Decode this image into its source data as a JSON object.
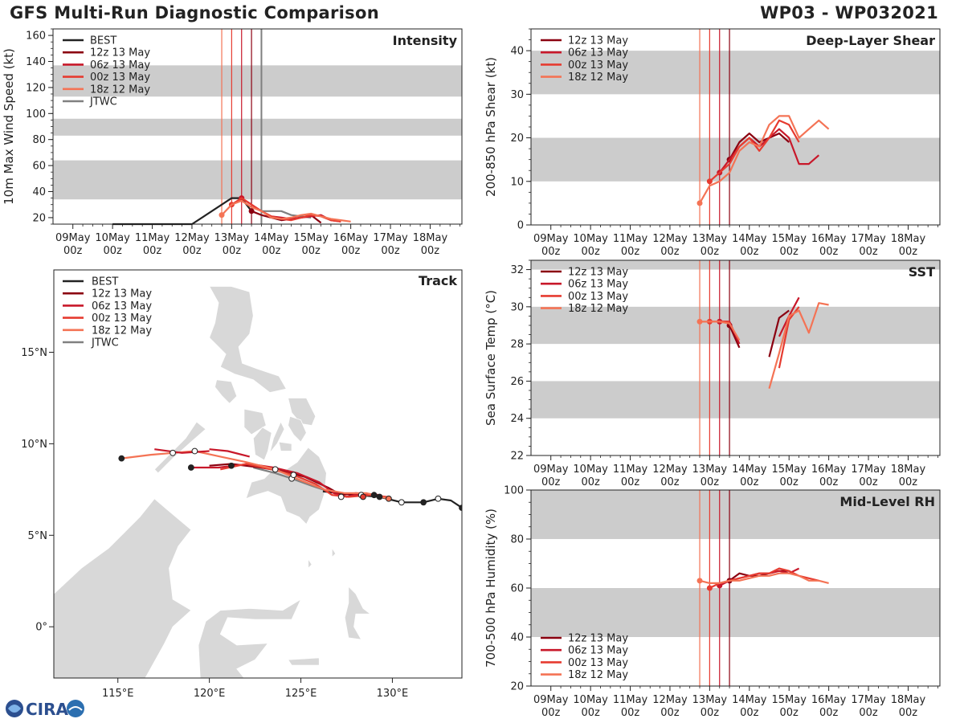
{
  "header": {
    "title": "GFS Multi-Run Diagnostic Comparison",
    "storm_id": "WP03 - WP032021"
  },
  "logo": {
    "text": "CIRA",
    "icon": "cira-logo-icon"
  },
  "colors": {
    "BEST": "#222222",
    "12z 13 May": "#8b0010",
    "06z 13 May": "#c8182a",
    "00z 13 May": "#e63b30",
    "18z 12 May": "#f47355",
    "JTWC": "#808080",
    "band": "#cccccc",
    "land": "#d8d8d8"
  },
  "time_axis": {
    "ticks": [
      {
        "d": 0,
        "line1": "09May",
        "line2": "00z"
      },
      {
        "d": 1,
        "line1": "10May",
        "line2": "00z"
      },
      {
        "d": 2,
        "line1": "11May",
        "line2": "00z"
      },
      {
        "d": 3,
        "line1": "12May",
        "line2": "00z"
      },
      {
        "d": 4,
        "line1": "13May",
        "line2": "00z"
      },
      {
        "d": 5,
        "line1": "14May",
        "line2": "00z"
      },
      {
        "d": 6,
        "line1": "15May",
        "line2": "00z"
      },
      {
        "d": 7,
        "line1": "16May",
        "line2": "00z"
      },
      {
        "d": 8,
        "line1": "17May",
        "line2": "00z"
      },
      {
        "d": 9,
        "line1": "18May",
        "line2": "00z"
      }
    ],
    "run_lines": [
      {
        "run": "18z 12 May",
        "t": 3.75
      },
      {
        "run": "00z 13 May",
        "t": 4.0
      },
      {
        "run": "06z 13 May",
        "t": 4.25
      },
      {
        "run": "12z 13 May",
        "t": 4.5
      }
    ],
    "jtwc_line": 4.75
  },
  "chart_data": [
    {
      "id": "intensity",
      "type": "line",
      "title": "Intensity",
      "ylabel": "10m Max Wind Speed (kt)",
      "xlim": [
        -0.5,
        9.8
      ],
      "ylim": [
        15,
        165
      ],
      "yticks": [
        20,
        40,
        60,
        80,
        100,
        120,
        140,
        160
      ],
      "bands": [
        [
          34,
          64
        ],
        [
          83,
          96
        ],
        [
          113,
          137
        ]
      ],
      "legend": [
        "BEST",
        "12z 13 May",
        "06z 13 May",
        "00z 13 May",
        "18z 12 May",
        "JTWC"
      ],
      "series": [
        {
          "name": "BEST",
          "x": [
            1,
            2,
            3,
            4,
            4.25,
            4.5
          ],
          "y": [
            15,
            15,
            15,
            35,
            35,
            25
          ]
        },
        {
          "name": "JTWC",
          "x": [
            4.75,
            5.0,
            5.25,
            5.5,
            6.0
          ],
          "y": [
            25,
            25,
            25,
            22,
            20
          ]
        },
        {
          "name": "12z 13 May",
          "x": [
            4.5,
            4.75,
            5.0,
            5.25,
            5.5,
            5.75,
            6.0,
            6.25
          ],
          "y": [
            25,
            22,
            20,
            18,
            19,
            20,
            22,
            16
          ]
        },
        {
          "name": "06z 13 May",
          "x": [
            4.25,
            4.5,
            4.75,
            5.0,
            5.25,
            5.5,
            5.75,
            6.0,
            6.25,
            6.5,
            6.75
          ],
          "y": [
            35,
            30,
            25,
            21,
            20,
            19,
            20,
            21,
            22,
            18,
            17
          ]
        },
        {
          "name": "00z 13 May",
          "x": [
            4.0,
            4.25,
            4.5,
            4.75,
            5.0,
            5.25,
            5.5,
            5.75,
            6.0,
            6.25,
            6.5,
            6.75
          ],
          "y": [
            30,
            35,
            30,
            25,
            21,
            19,
            18,
            20,
            22,
            21,
            18,
            17
          ]
        },
        {
          "name": "18z 12 May",
          "x": [
            3.75,
            4.0,
            4.25,
            4.5,
            4.75,
            5.0,
            5.25,
            5.5,
            5.75,
            6.0,
            6.25,
            6.5,
            6.75,
            7.0
          ],
          "y": [
            22,
            30,
            33,
            28,
            25,
            20,
            19,
            20,
            22,
            23,
            21,
            19,
            18,
            17
          ]
        }
      ]
    },
    {
      "id": "shear",
      "type": "line",
      "title": "Deep-Layer Shear",
      "ylabel": "200-850 hPa Shear (kt)",
      "xlim": [
        -0.5,
        9.8
      ],
      "ylim": [
        0,
        45
      ],
      "yticks": [
        0,
        10,
        20,
        30,
        40
      ],
      "bands": [
        [
          10,
          20
        ],
        [
          30,
          40
        ]
      ],
      "legend": [
        "12z 13 May",
        "06z 13 May",
        "00z 13 May",
        "18z 12 May"
      ],
      "series": [
        {
          "name": "12z 13 May",
          "x": [
            4.5,
            4.75,
            5.0,
            5.25,
            5.5,
            5.75,
            6.0
          ],
          "y": [
            15,
            19,
            21,
            19,
            20,
            21,
            19
          ]
        },
        {
          "name": "06z 13 May",
          "x": [
            4.25,
            4.5,
            4.75,
            5.0,
            5.25,
            5.5,
            5.75,
            6.0,
            6.25,
            6.5,
            6.75
          ],
          "y": [
            12,
            15,
            18,
            20,
            18,
            20,
            22,
            20,
            14,
            14,
            16
          ]
        },
        {
          "name": "00z 13 May",
          "x": [
            4.0,
            4.25,
            4.5,
            4.75,
            5.0,
            5.25,
            5.5,
            5.75,
            6.0,
            6.25
          ],
          "y": [
            10,
            12,
            14,
            18,
            20,
            17,
            20,
            24,
            23,
            19
          ]
        },
        {
          "name": "18z 12 May",
          "x": [
            3.75,
            4.0,
            4.25,
            4.5,
            4.75,
            5.0,
            5.25,
            5.5,
            5.75,
            6.0,
            6.25,
            6.5,
            6.75,
            7.0
          ],
          "y": [
            5,
            9,
            10,
            12,
            17,
            19,
            18,
            23,
            25,
            25,
            20,
            22,
            24,
            22
          ]
        }
      ]
    },
    {
      "id": "sst",
      "type": "line",
      "title": "SST",
      "ylabel": "Sea Surface Temp (°C)",
      "xlim": [
        -0.5,
        9.8
      ],
      "ylim": [
        22,
        32.5
      ],
      "yticks": [
        22,
        24,
        26,
        28,
        30,
        32
      ],
      "bands": [
        [
          24,
          26
        ],
        [
          28,
          30
        ],
        [
          32,
          32.5
        ]
      ],
      "legend": [
        "12z 13 May",
        "06z 13 May",
        "00z 13 May",
        "18z 12 May"
      ],
      "series": [
        {
          "name": "12z 13 May",
          "x": [
            4.5,
            4.75,
            null,
            5.5,
            5.75,
            6.0
          ],
          "y": [
            29.0,
            27.8,
            null,
            27.3,
            29.4,
            29.8
          ]
        },
        {
          "name": "06z 13 May",
          "x": [
            4.25,
            4.5,
            4.75,
            null,
            5.75,
            6.0,
            6.25
          ],
          "y": [
            29.2,
            29.2,
            28.0,
            null,
            28.4,
            29.5,
            30.5
          ]
        },
        {
          "name": "00z 13 May",
          "x": [
            4.0,
            4.25,
            4.5,
            null,
            5.75,
            6.0,
            6.25
          ],
          "y": [
            29.2,
            29.2,
            29.2,
            null,
            26.7,
            29.3,
            30.0
          ]
        },
        {
          "name": "18z 12 May",
          "x": [
            3.75,
            4.0,
            4.25,
            4.5,
            4.75,
            null,
            5.5,
            5.75,
            6.0,
            6.25,
            6.5,
            6.75,
            7.0
          ],
          "y": [
            29.2,
            29.2,
            29.2,
            29.1,
            28.2,
            null,
            25.6,
            27.5,
            29.5,
            29.8,
            28.6,
            30.2,
            30.1
          ]
        }
      ]
    },
    {
      "id": "rh",
      "type": "line",
      "title": "Mid-Level RH",
      "ylabel": "700-500 hPa Humidity (%)",
      "xlim": [
        -0.5,
        9.8
      ],
      "ylim": [
        20,
        100
      ],
      "yticks": [
        20,
        40,
        60,
        80,
        100
      ],
      "bands": [
        [
          40,
          60
        ],
        [
          80,
          100
        ]
      ],
      "legend": [
        "12z 13 May",
        "06z 13 May",
        "00z 13 May",
        "18z 12 May"
      ],
      "series": [
        {
          "name": "12z 13 May",
          "x": [
            4.5,
            4.75,
            5.0,
            5.25,
            5.5,
            5.75,
            6.0
          ],
          "y": [
            63,
            66,
            65,
            65,
            66,
            67,
            67
          ]
        },
        {
          "name": "06z 13 May",
          "x": [
            4.25,
            4.5,
            4.75,
            5.0,
            5.25,
            5.5,
            5.75,
            6.0,
            6.25
          ],
          "y": [
            61,
            63,
            64,
            65,
            66,
            66,
            67,
            66,
            68
          ]
        },
        {
          "name": "00z 13 May",
          "x": [
            4.0,
            4.25,
            4.5,
            4.75,
            5.0,
            5.25,
            5.5,
            5.75,
            6.0,
            6.25,
            6.5,
            6.75
          ],
          "y": [
            60,
            62,
            63,
            64,
            65,
            66,
            66,
            68,
            67,
            65,
            64,
            63
          ]
        },
        {
          "name": "18z 12 May",
          "x": [
            3.75,
            4.0,
            4.25,
            4.5,
            4.75,
            5.0,
            5.25,
            5.5,
            5.75,
            6.0,
            6.25,
            6.5,
            6.75,
            7.0
          ],
          "y": [
            63,
            62,
            62,
            63,
            63,
            64,
            65,
            65,
            66,
            66,
            65,
            63,
            63,
            62
          ]
        }
      ]
    },
    {
      "id": "track",
      "type": "line",
      "title": "Track",
      "xlim": [
        111.5,
        133.8
      ],
      "ylim": [
        -2.8,
        19.5
      ],
      "xticks": [
        {
          "v": 115,
          "label": "115°E"
        },
        {
          "v": 120,
          "label": "120°E"
        },
        {
          "v": 125,
          "label": "125°E"
        },
        {
          "v": 130,
          "label": "130°E"
        }
      ],
      "yticks": [
        {
          "v": 0,
          "label": "0°"
        },
        {
          "v": 5,
          "label": "5°N"
        },
        {
          "v": 10,
          "label": "10°N"
        },
        {
          "v": 15,
          "label": "15°N"
        }
      ],
      "legend": [
        "BEST",
        "12z 13 May",
        "06z 13 May",
        "00z 13 May",
        "18z 12 May",
        "JTWC"
      ],
      "series": [
        {
          "name": "BEST",
          "lon": [
            133.8,
            133.2,
            132.5,
            131.7,
            130.5,
            129.3,
            128.0,
            127.0,
            126.2
          ],
          "lat": [
            6.5,
            6.9,
            7.0,
            6.8,
            6.8,
            7.1,
            7.2,
            7.3,
            7.4
          ],
          "markers": [
            {
              "lon": 133.8,
              "lat": 6.5,
              "fill": "#222222"
            },
            {
              "lon": 132.5,
              "lat": 7.0,
              "fill": "#ffffff"
            },
            {
              "lon": 131.7,
              "lat": 6.8,
              "fill": "#222222"
            },
            {
              "lon": 130.5,
              "lat": 6.8,
              "fill": "#ffffff"
            },
            {
              "lon": 129.3,
              "lat": 7.1,
              "fill": "#222222"
            }
          ]
        },
        {
          "name": "JTWC",
          "lon": [
            126.5,
            125.6,
            124.5,
            123.6,
            122.4
          ],
          "lat": [
            7.4,
            7.7,
            8.1,
            8.4,
            8.7
          ],
          "markers": [
            {
              "lon": 124.5,
              "lat": 8.1,
              "fill": "#ffffff"
            }
          ]
        },
        {
          "name": "12z 13 May",
          "lon": [
            129.0,
            128.0,
            127.2,
            126.5,
            125.2,
            124.0,
            122.8,
            121.2,
            120.0
          ],
          "lat": [
            7.2,
            7.3,
            7.2,
            7.6,
            8.2,
            8.5,
            8.7,
            8.9,
            8.8
          ],
          "markers": [
            {
              "lon": 129.0,
              "lat": 7.2,
              "fill": "#222222"
            },
            {
              "lon": 127.2,
              "lat": 7.1,
              "fill": "#ffffff"
            },
            {
              "lon": 121.2,
              "lat": 8.8,
              "fill": "#222222"
            }
          ]
        },
        {
          "name": "06z 13 May",
          "lon": [
            129.3,
            128.3,
            127.5,
            126.8,
            126.0,
            124.8,
            123.5,
            122.2,
            120.5,
            119.0
          ],
          "lat": [
            7.2,
            7.3,
            7.1,
            7.3,
            7.9,
            8.4,
            8.7,
            8.9,
            8.7,
            8.7
          ],
          "markers": [
            {
              "lon": 128.3,
              "lat": 7.2,
              "fill": "#ffffff"
            },
            {
              "lon": 119.0,
              "lat": 8.7,
              "fill": "#222222"
            }
          ]
        },
        {
          "name": "00z 13 May",
          "lon": [
            129.7,
            128.8,
            127.6,
            126.7,
            125.8,
            124.6,
            123.4,
            122.0,
            120.6
          ],
          "lat": [
            7.1,
            7.2,
            7.1,
            7.2,
            7.8,
            8.3,
            8.6,
            8.9,
            8.6
          ],
          "markers": [
            {
              "lon": 128.4,
              "lat": 7.1,
              "fill": "#e63b30"
            },
            {
              "lon": 124.6,
              "lat": 8.3,
              "fill": "#ffffff"
            }
          ]
        },
        {
          "name": "18z 12 May",
          "lon": [
            129.8,
            128.6,
            127.4,
            126.3,
            125.0,
            123.6,
            122.0,
            120.6,
            119.2,
            118.0,
            116.8,
            115.2
          ],
          "lat": [
            7.0,
            7.3,
            7.3,
            7.5,
            8.0,
            8.6,
            9.0,
            9.3,
            9.6,
            9.5,
            9.4,
            9.2
          ],
          "markers": [
            {
              "lon": 129.8,
              "lat": 7.0,
              "fill": "#f47355"
            },
            {
              "lon": 123.6,
              "lat": 8.6,
              "fill": "#ffffff"
            },
            {
              "lon": 119.2,
              "lat": 9.6,
              "fill": "#ffffff"
            },
            {
              "lon": 118.0,
              "lat": 9.5,
              "fill": "#ffffff"
            },
            {
              "lon": 115.2,
              "lat": 9.2,
              "fill": "#222222"
            }
          ]
        },
        {
          "name": "06z 13 May extension",
          "lon": [
            120.0,
            121.0,
            122.2
          ],
          "lat": [
            9.7,
            9.6,
            9.3
          ],
          "color_of": "06z 13 May",
          "markers": []
        },
        {
          "name": "12z 13 May extension",
          "lon": [
            117.0,
            118.5,
            120.0
          ],
          "lat": [
            9.7,
            9.5,
            9.6
          ],
          "color_of": "06z 13 May",
          "markers": []
        }
      ]
    }
  ]
}
